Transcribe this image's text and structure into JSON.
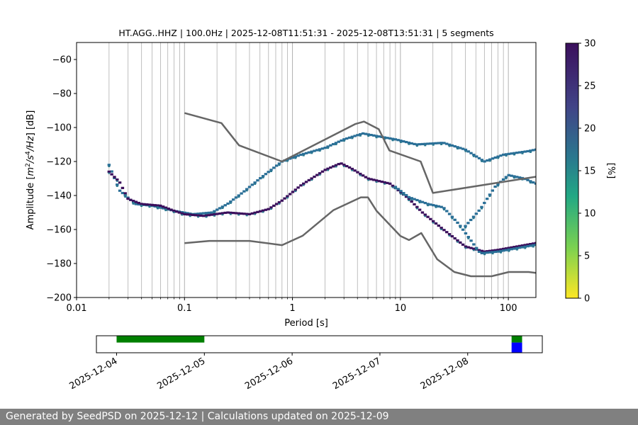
{
  "chart_data": {
    "type": "heatmap",
    "title": "HT.AGG..HHZ | 100.0Hz | 2025-12-08T11:51:31 - 2025-12-08T13:51:31 | 5 segments",
    "xlabel": "Period [s]",
    "ylabel_parts": [
      "Amplitude [",
      "m",
      "2",
      "/s",
      "4",
      "/Hz",
      "] [dB]"
    ],
    "xscale": "log",
    "xlim": [
      0.01,
      180
    ],
    "ylim": [
      -200,
      -50
    ],
    "x_ticks": [
      {
        "value": 0.01,
        "label": "0.01"
      },
      {
        "value": 0.1,
        "label": "0.1"
      },
      {
        "value": 1,
        "label": "1"
      },
      {
        "value": 10,
        "label": "10"
      },
      {
        "value": 100,
        "label": "100"
      }
    ],
    "y_ticks": [
      -60,
      -80,
      -100,
      -120,
      -140,
      -160,
      -180,
      -200
    ],
    "y_tick_labels": [
      "−60",
      "−80",
      "−100",
      "−120",
      "−140",
      "−160",
      "−180",
      "−200"
    ],
    "grid": true,
    "colorbar": {
      "label": "[%]",
      "min": 0,
      "max": 30,
      "ticks": [
        0,
        5,
        10,
        15,
        20,
        25,
        30
      ],
      "colors": [
        "#fde725",
        "#5ec962",
        "#21918c",
        "#3b528b",
        "#440154",
        "#2d0a4e"
      ]
    },
    "noise_models": [
      {
        "name": "high-noise-model",
        "color": "#666666",
        "x": [
          0.1,
          0.22,
          0.32,
          0.8,
          3.8,
          4.6,
          6.3,
          7.9,
          15.4,
          20,
          354.8
        ],
        "y": [
          -91.5,
          -97.4,
          -110.5,
          -120,
          -98,
          -96.5,
          -101,
          -113.5,
          -120,
          -138.5,
          -126
        ]
      },
      {
        "name": "low-noise-model",
        "color": "#666666",
        "x": [
          0.1,
          0.17,
          0.4,
          0.8,
          1.24,
          2.4,
          4.3,
          5,
          6,
          10,
          12,
          15.6,
          21.9,
          31.6,
          45,
          70,
          101,
          154,
          328
        ],
        "y": [
          -168,
          -166.7,
          -166.7,
          -169.2,
          -163.7,
          -148.6,
          -141.1,
          -141.1,
          -149,
          -163.8,
          -166.2,
          -162.1,
          -177.5,
          -185,
          -187.5,
          -187.5,
          -185,
          -185,
          -187.5
        ]
      },
      {
        "name": "psd-mode-high",
        "color": "#2a6f97",
        "style": "blocks",
        "x": [
          0.02,
          0.025,
          0.035,
          0.05,
          0.08,
          0.12,
          0.18,
          0.25,
          0.35,
          0.5,
          0.8,
          1.2,
          2,
          3,
          4.5,
          6,
          9,
          14,
          25,
          40,
          60,
          90,
          150,
          180
        ],
        "y": [
          -122,
          -137,
          -145,
          -146,
          -149,
          -151,
          -150,
          -145,
          -138,
          -130,
          -120,
          -116,
          -112,
          -107,
          -103.5,
          -105,
          -107,
          -110,
          -109,
          -113,
          -120,
          -116,
          -114,
          -113
        ]
      },
      {
        "name": "psd-mode-main",
        "color": "#3b0f5c",
        "style": "blocks",
        "x": [
          0.02,
          0.025,
          0.03,
          0.04,
          0.06,
          0.08,
          0.1,
          0.15,
          0.25,
          0.4,
          0.6,
          0.8,
          1.2,
          2,
          2.8,
          3.5,
          5,
          8,
          12,
          16,
          25,
          40,
          60,
          80,
          120,
          180
        ],
        "y": [
          -126,
          -132,
          -142,
          -145,
          -146,
          -149,
          -151,
          -152,
          -150,
          -151,
          -148,
          -143,
          -134,
          -125,
          -121,
          -124,
          -130,
          -133,
          -142,
          -150,
          -160,
          -170,
          -173,
          -172,
          -170,
          -168
        ]
      },
      {
        "name": "psd-mode-branch",
        "color": "#2a6f97",
        "style": "blocks",
        "x": [
          9,
          12,
          18,
          25,
          35,
          55,
          80,
          120,
          180
        ],
        "y": [
          -135,
          -141,
          -145,
          -147,
          -157,
          -174,
          -173,
          -171,
          -169
        ]
      },
      {
        "name": "psd-mode-rise",
        "color": "#2a6f97",
        "style": "blocks",
        "x": [
          40,
          55,
          75,
          100,
          140,
          180
        ],
        "y": [
          -158,
          -148,
          -135,
          -128,
          -130,
          -133
        ]
      }
    ],
    "availability": {
      "x_ticks": [
        {
          "value": 1,
          "label": "2025-12-04"
        },
        {
          "value": 2,
          "label": "2025-12-05"
        },
        {
          "value": 3,
          "label": "2025-12-06"
        },
        {
          "value": 4,
          "label": "2025-12-07"
        },
        {
          "value": 5,
          "label": "2025-12-08"
        }
      ],
      "xlim": [
        0.77,
        5.85
      ],
      "data_bars": [
        {
          "start": 1.0,
          "end": 2.0,
          "color": "#008000"
        },
        {
          "start": 5.5,
          "end": 5.62,
          "color": "#008000"
        }
      ],
      "selection_bars": [
        {
          "start": 5.5,
          "end": 5.62,
          "color": "#0000ff"
        }
      ]
    }
  },
  "footer": {
    "text": "Generated by SeedPSD on 2025-12-12 | Calculations updated on 2025-12-09"
  }
}
